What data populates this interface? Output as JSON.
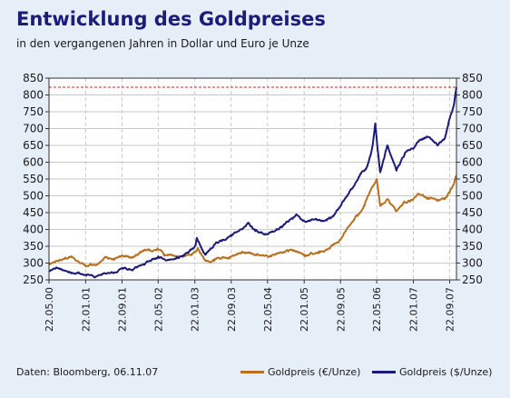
{
  "header": {
    "title": "Entwicklung des Goldpreises",
    "subtitle": "in den vergangenen Jahren in Dollar und Euro je Unze"
  },
  "footer": {
    "source": "Daten: Bloomberg, 06.11.07"
  },
  "colors": {
    "background": "#e6eef8",
    "plot_background": "#ffffff",
    "eur_series": "#b8701e",
    "usd_series": "#1a1a78",
    "reference_line": "#cc2222",
    "grid": "#c8c8c8"
  },
  "chart_data": {
    "type": "line",
    "title": "Entwicklung des Goldpreises",
    "subtitle": "in den vergangenen Jahren in Dollar und Euro je Unze",
    "x_ticks": [
      "22.05.00",
      "22.01.01",
      "22.09.01",
      "22.05.02",
      "22.01.03",
      "22.09.03",
      "22.05.04",
      "22.01.05",
      "22.09.05",
      "22.05.06",
      "22.01.07",
      "22.09.07"
    ],
    "x_range": [
      "2000-05-22",
      "2007-11-06"
    ],
    "y_ticks": [
      250,
      300,
      350,
      400,
      450,
      500,
      550,
      600,
      650,
      700,
      750,
      800,
      850
    ],
    "ylim": [
      250,
      850
    ],
    "y_axis_left_and_right": true,
    "grid": true,
    "reference_line": {
      "y": 823,
      "style": "dashed"
    },
    "legend_position": "bottom-right",
    "series": [
      {
        "name": "Goldpreis (€/Unze)",
        "color": "#b8701e",
        "points": [
          [
            "2000-05-22",
            298
          ],
          [
            "2000-07-01",
            302
          ],
          [
            "2000-09-01",
            312
          ],
          [
            "2000-10-20",
            320
          ],
          [
            "2000-12-01",
            306
          ],
          [
            "2001-01-22",
            290
          ],
          [
            "2001-04-01",
            295
          ],
          [
            "2001-06-01",
            318
          ],
          [
            "2001-08-01",
            310
          ],
          [
            "2001-09-22",
            322
          ],
          [
            "2001-12-01",
            316
          ],
          [
            "2002-02-15",
            336
          ],
          [
            "2002-05-22",
            340
          ],
          [
            "2002-07-01",
            322
          ],
          [
            "2002-09-01",
            322
          ],
          [
            "2002-11-01",
            318
          ],
          [
            "2003-01-22",
            332
          ],
          [
            "2003-02-10",
            345
          ],
          [
            "2003-04-01",
            308
          ],
          [
            "2003-06-01",
            306
          ],
          [
            "2003-09-22",
            320
          ],
          [
            "2003-12-01",
            330
          ],
          [
            "2004-02-01",
            328
          ],
          [
            "2004-05-22",
            320
          ],
          [
            "2004-08-01",
            328
          ],
          [
            "2004-11-01",
            340
          ],
          [
            "2005-01-22",
            325
          ],
          [
            "2005-05-01",
            335
          ],
          [
            "2005-07-01",
            343
          ],
          [
            "2005-09-22",
            370
          ],
          [
            "2005-11-01",
            400
          ],
          [
            "2006-01-15",
            440
          ],
          [
            "2006-03-01",
            470
          ],
          [
            "2006-04-15",
            520
          ],
          [
            "2006-05-22",
            550
          ],
          [
            "2006-06-15",
            470
          ],
          [
            "2006-08-01",
            490
          ],
          [
            "2006-10-01",
            455
          ],
          [
            "2006-12-01",
            480
          ],
          [
            "2007-01-22",
            490
          ],
          [
            "2007-03-01",
            505
          ],
          [
            "2007-05-01",
            495
          ],
          [
            "2007-07-01",
            485
          ],
          [
            "2007-08-20",
            490
          ],
          [
            "2007-09-22",
            510
          ],
          [
            "2007-10-20",
            535
          ],
          [
            "2007-11-06",
            560
          ]
        ]
      },
      {
        "name": "Goldpreis ($/Unze)",
        "color": "#1a1a78",
        "points": [
          [
            "2000-05-22",
            275
          ],
          [
            "2000-07-15",
            285
          ],
          [
            "2000-10-01",
            272
          ],
          [
            "2000-12-01",
            270
          ],
          [
            "2001-01-22",
            265
          ],
          [
            "2001-04-01",
            260
          ],
          [
            "2001-06-01",
            270
          ],
          [
            "2001-08-01",
            272
          ],
          [
            "2001-09-22",
            285
          ],
          [
            "2001-12-01",
            278
          ],
          [
            "2002-02-15",
            295
          ],
          [
            "2002-05-22",
            320
          ],
          [
            "2002-08-01",
            310
          ],
          [
            "2002-11-01",
            320
          ],
          [
            "2003-01-22",
            350
          ],
          [
            "2003-02-05",
            375
          ],
          [
            "2003-04-01",
            325
          ],
          [
            "2003-06-01",
            355
          ],
          [
            "2003-09-22",
            380
          ],
          [
            "2003-12-01",
            400
          ],
          [
            "2004-01-15",
            420
          ],
          [
            "2004-03-01",
            395
          ],
          [
            "2004-05-22",
            385
          ],
          [
            "2004-08-01",
            400
          ],
          [
            "2004-12-01",
            445
          ],
          [
            "2005-01-22",
            425
          ],
          [
            "2005-04-01",
            430
          ],
          [
            "2005-06-01",
            425
          ],
          [
            "2005-08-01",
            440
          ],
          [
            "2005-09-22",
            470
          ],
          [
            "2005-12-15",
            525
          ],
          [
            "2006-02-01",
            565
          ],
          [
            "2006-03-15",
            585
          ],
          [
            "2006-04-20",
            640
          ],
          [
            "2006-05-12",
            715
          ],
          [
            "2006-06-14",
            570
          ],
          [
            "2006-08-01",
            650
          ],
          [
            "2006-10-01",
            575
          ],
          [
            "2006-12-01",
            630
          ],
          [
            "2007-01-22",
            640
          ],
          [
            "2007-03-01",
            665
          ],
          [
            "2007-05-01",
            675
          ],
          [
            "2007-07-01",
            650
          ],
          [
            "2007-08-20",
            670
          ],
          [
            "2007-09-22",
            730
          ],
          [
            "2007-10-20",
            770
          ],
          [
            "2007-11-06",
            823
          ]
        ]
      }
    ]
  }
}
